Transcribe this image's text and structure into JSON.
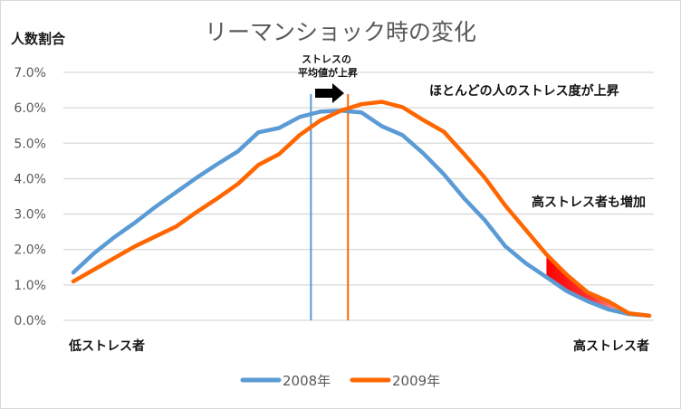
{
  "chart_data": {
    "type": "line",
    "title": "リーマンショック時の変化",
    "ylabel": "人数割合",
    "xlabel_left": "低ストレス者",
    "xlabel_right": "高ストレス者",
    "ylim": [
      0,
      7
    ],
    "yticks": [
      0,
      1,
      2,
      3,
      4,
      5,
      6,
      7
    ],
    "ytick_labels": [
      "0.0%",
      "1.0%",
      "2.0%",
      "3.0%",
      "4.0%",
      "5.0%",
      "6.0%",
      "7.0%"
    ],
    "grid": true,
    "legend_position": "bottom",
    "x_count": 29,
    "series": [
      {
        "name": "2008年",
        "color": "#5b9bd5",
        "values": [
          1.35,
          1.89,
          2.35,
          2.76,
          3.21,
          3.62,
          4.03,
          4.41,
          4.77,
          5.31,
          5.43,
          5.74,
          5.89,
          5.92,
          5.87,
          5.48,
          5.23,
          4.72,
          4.13,
          3.44,
          2.83,
          2.09,
          1.61,
          1.22,
          0.82,
          0.54,
          0.31,
          0.18,
          0.13
        ],
        "mean_index": 11.55
      },
      {
        "name": "2009年",
        "color": "#ff6600",
        "values": [
          1.1,
          1.43,
          1.76,
          2.09,
          2.37,
          2.65,
          3.06,
          3.44,
          3.85,
          4.39,
          4.69,
          5.23,
          5.64,
          5.92,
          6.1,
          6.17,
          6.02,
          5.66,
          5.33,
          4.69,
          4.03,
          3.24,
          2.55,
          1.86,
          1.28,
          0.79,
          0.54,
          0.2,
          0.13
        ],
        "mean_index": 13.35
      }
    ],
    "highlight": {
      "from_index": 23,
      "to_index": 28,
      "color": "#ff0000",
      "description": "area between 2009 and 2008 lines in high-stress tail"
    },
    "annotations": {
      "mean_shift_line1": "ストレスの",
      "mean_shift_line2": "平均値が上昇",
      "most_people": "ほとんどの人のストレス度が上昇",
      "high_stress": "高ストレス者も増加"
    }
  }
}
